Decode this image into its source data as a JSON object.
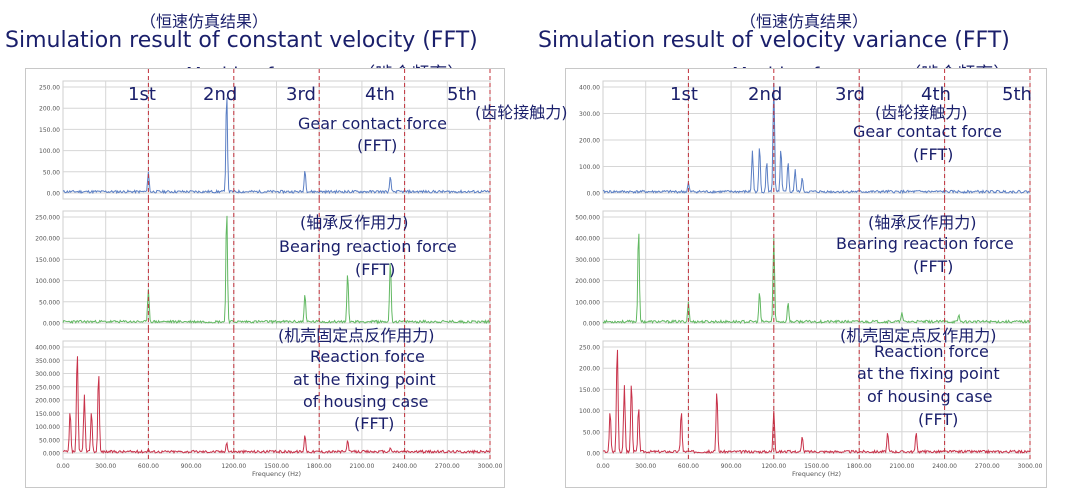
{
  "left": {
    "title_cn": "（恒速仿真结果）",
    "title_en": "Simulation result of constant velocity (FFT)",
    "meshing": "Meshing frequency（啮合频率）",
    "orders": [
      "1st",
      "2nd",
      "3rd",
      "4th",
      "5th"
    ],
    "notes": {
      "gear_cn": "(齿轮接触力)",
      "gear_en": "Gear contact force",
      "gear_fft": "(FFT)",
      "bearing_cn": "(轴承反作用力)",
      "bearing_en": "Bearing reaction force",
      "bearing_fft": "(FFT)",
      "housing_cn": "(机壳固定点反作用力)",
      "housing_en1": "Reaction force",
      "housing_en2": "at the fixing point",
      "housing_en3": "of housing case",
      "housing_fft": "(FFT)"
    }
  },
  "right": {
    "title_cn": "（恒速仿真结果）",
    "title_en": "Simulation result of velocity variance (FFT)",
    "meshing": "Meshing frequency（啮合频率）",
    "orders": [
      "1st",
      "2nd",
      "3rd",
      "4th",
      "5th"
    ],
    "notes": {
      "gear_cn": "(齿轮接触力)",
      "gear_en": "Gear contact force",
      "gear_fft": "(FFT)",
      "bearing_cn": "(轴承反作用力)",
      "bearing_en": "Bearing reaction force",
      "bearing_fft": "(FFT)",
      "housing_cn": "(机壳固定点反作用力)",
      "housing_en1": "Reaction force",
      "housing_en2": "at the fixing point",
      "housing_en3": "of housing case",
      "housing_fft": "(FFT)"
    }
  },
  "colors": {
    "gear": "#5b7fc4",
    "bearing": "#62b862",
    "housing": "#c8324a",
    "marker": "#c0303a",
    "grid": "#d6d6d6",
    "text": "#1a1f6b"
  },
  "chart_data": [
    {
      "type": "line",
      "id": "left-gear",
      "series": [
        {
          "name": "",
          "peaks": [
            [
              600,
              50
            ],
            [
              1150,
              240
            ],
            [
              1700,
              55
            ],
            [
              2300,
              40
            ]
          ]
        }
      ],
      "ylim": [
        0,
        250
      ],
      "yticks": [
        "250.00",
        "200.00",
        "150.00",
        "100.00",
        "50.00",
        "0.00"
      ],
      "xlim": [
        0,
        3000
      ],
      "markers_x": [
        600,
        1200,
        1800,
        2400,
        3000
      ],
      "xticks": [],
      "xlabel": ""
    },
    {
      "type": "line",
      "id": "left-bearing",
      "series": [
        {
          "name": "",
          "peaks": [
            [
              600,
              80
            ],
            [
              1150,
              270
            ],
            [
              1700,
              70
            ],
            [
              2000,
              120
            ],
            [
              2300,
              150
            ]
          ]
        }
      ],
      "ylim": [
        0,
        250000
      ],
      "yticks": [
        "250.000",
        "200.000",
        "150.000",
        "100.000",
        "50.000",
        "0.000"
      ],
      "xlim": [
        0,
        3000
      ],
      "markers_x": [
        600,
        1200,
        1800,
        2400,
        3000
      ],
      "xticks": [],
      "xlabel": ""
    },
    {
      "type": "line",
      "id": "left-housing",
      "series": [
        {
          "name": "",
          "peaks": [
            [
              50,
              160
            ],
            [
              100,
              390
            ],
            [
              150,
              220
            ],
            [
              200,
              160
            ],
            [
              250,
              310
            ],
            [
              600,
              15
            ],
            [
              1150,
              40
            ],
            [
              1700,
              70
            ],
            [
              2000,
              50
            ],
            [
              2300,
              20
            ]
          ]
        }
      ],
      "ylim": [
        0,
        400
      ],
      "yticks": [
        "400.000",
        "350.000",
        "300.000",
        "250.000",
        "200.000",
        "150.000",
        "100.000",
        "50.000",
        "0.000"
      ],
      "xlim": [
        0,
        3000
      ],
      "markers_x": [
        600,
        1200,
        1800,
        2400,
        3000
      ],
      "xticks": [
        "0.00",
        "300.00",
        "600.00",
        "900.00",
        "1200.00",
        "1500.00",
        "1800.00",
        "2100.00",
        "2400.00",
        "2700.00",
        "3000.00"
      ],
      "xlabel": "Frequency (Hz)"
    },
    {
      "type": "line",
      "id": "right-gear",
      "series": [
        {
          "name": "",
          "peaks": [
            [
              600,
              40
            ],
            [
              1050,
              160
            ],
            [
              1100,
              180
            ],
            [
              1150,
              120
            ],
            [
              1200,
              420
            ],
            [
              1250,
              170
            ],
            [
              1300,
              120
            ],
            [
              1350,
              90
            ],
            [
              1400,
              60
            ]
          ]
        }
      ],
      "ylim": [
        0,
        400
      ],
      "yticks": [
        "400.00",
        "300.00",
        "200.00",
        "100.00",
        "0.00"
      ],
      "xlim": [
        0,
        3000
      ],
      "markers_x": [
        600,
        1200,
        1800,
        2400,
        3000
      ],
      "xticks": [],
      "xlabel": ""
    },
    {
      "type": "line",
      "id": "right-bearing",
      "series": [
        {
          "name": "",
          "peaks": [
            [
              250,
              450
            ],
            [
              600,
              100
            ],
            [
              1100,
              150
            ],
            [
              1200,
              400
            ],
            [
              1300,
              100
            ],
            [
              2100,
              50
            ],
            [
              2500,
              40
            ]
          ]
        }
      ],
      "ylim": [
        0,
        500
      ],
      "yticks": [
        "500.000",
        "400.000",
        "300.000",
        "200.000",
        "100.000",
        "0.000"
      ],
      "xlim": [
        0,
        3000
      ],
      "markers_x": [
        600,
        1200,
        1800,
        2400,
        3000
      ],
      "xticks": [],
      "xlabel": ""
    },
    {
      "type": "line",
      "id": "right-housing",
      "series": [
        {
          "name": "",
          "peaks": [
            [
              50,
              100
            ],
            [
              100,
              260
            ],
            [
              150,
              160
            ],
            [
              200,
              170
            ],
            [
              250,
              110
            ],
            [
              550,
              100
            ],
            [
              800,
              150
            ],
            [
              1200,
              100
            ],
            [
              1400,
              40
            ],
            [
              2000,
              50
            ],
            [
              2200,
              50
            ]
          ]
        }
      ],
      "ylim": [
        0,
        300
      ],
      "yticks": [
        "250.00",
        "200.00",
        "150.00",
        "100.00",
        "50.00",
        "0.00"
      ],
      "xlim": [
        0,
        3000
      ],
      "markers_x": [
        600,
        1200,
        1800,
        2400,
        3000
      ],
      "xticks": [
        "0.00",
        "300.00",
        "600.00",
        "900.00",
        "1200.00",
        "1500.00",
        "1800.00",
        "2100.00",
        "2400.00",
        "2700.00",
        "3000.00"
      ],
      "xlabel": "Frequency (Hz)"
    }
  ]
}
